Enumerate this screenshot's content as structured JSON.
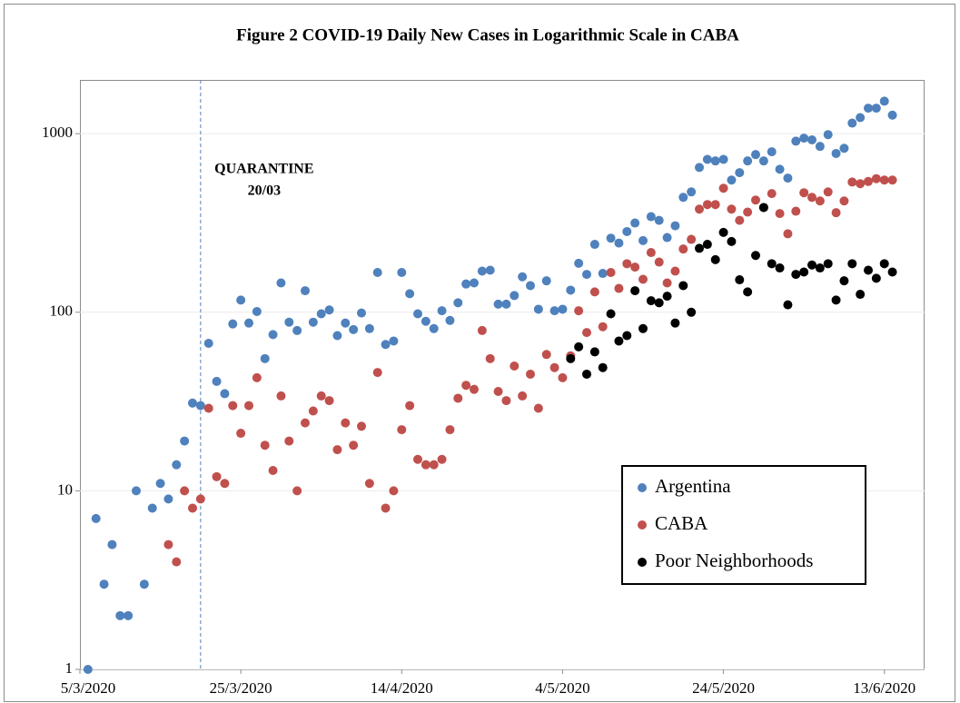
{
  "chart_data": {
    "type": "scatter",
    "title": "Figure 2 COVID-19 Daily New Cases in Logarithmic Scale in CABA",
    "log_scale": true,
    "grid": true,
    "legend": "lower right",
    "xlim": [
      "5/3/2020",
      "18/6/2020"
    ],
    "xticks": [
      "5/3/2020",
      "25/3/2020",
      "14/4/2020",
      "4/5/2020",
      "24/5/2020",
      "13/6/2020"
    ],
    "ylim": [
      1,
      2000
    ],
    "yticks": [
      1,
      10,
      100,
      1000
    ],
    "annotation": {
      "lines": [
        "QUARANTINE",
        "20/03"
      ],
      "x": "20/3/2020",
      "color": "#4f81bd"
    },
    "series": [
      {
        "name": "Argentina",
        "color": "#4f81bd",
        "x": [
          "6/3/2020",
          "7/3/2020",
          "8/3/2020",
          "9/3/2020",
          "10/3/2020",
          "11/3/2020",
          "12/3/2020",
          "13/3/2020",
          "14/3/2020",
          "15/3/2020",
          "16/3/2020",
          "17/3/2020",
          "18/3/2020",
          "19/3/2020",
          "20/3/2020",
          "21/3/2020",
          "22/3/2020",
          "23/3/2020",
          "24/3/2020",
          "25/3/2020",
          "26/3/2020",
          "27/3/2020",
          "28/3/2020",
          "29/3/2020",
          "30/3/2020",
          "31/3/2020",
          "1/4/2020",
          "2/4/2020",
          "3/4/2020",
          "4/4/2020",
          "5/4/2020",
          "6/4/2020",
          "7/4/2020",
          "8/4/2020",
          "9/4/2020",
          "10/4/2020",
          "11/4/2020",
          "12/4/2020",
          "13/4/2020",
          "14/4/2020",
          "15/4/2020",
          "16/4/2020",
          "17/4/2020",
          "18/4/2020",
          "19/4/2020",
          "20/4/2020",
          "21/4/2020",
          "22/4/2020",
          "23/4/2020",
          "24/4/2020",
          "25/4/2020",
          "26/4/2020",
          "27/4/2020",
          "28/4/2020",
          "29/4/2020",
          "30/4/2020",
          "1/5/2020",
          "2/5/2020",
          "3/5/2020",
          "4/5/2020",
          "5/5/2020",
          "6/5/2020",
          "7/5/2020",
          "8/5/2020",
          "9/5/2020",
          "10/5/2020",
          "11/5/2020",
          "12/5/2020",
          "13/5/2020",
          "14/5/2020",
          "15/5/2020",
          "16/5/2020",
          "17/5/2020",
          "18/5/2020",
          "19/5/2020",
          "20/5/2020",
          "21/5/2020",
          "22/5/2020",
          "23/5/2020",
          "24/5/2020",
          "25/5/2020",
          "26/5/2020",
          "27/5/2020",
          "28/5/2020",
          "29/5/2020",
          "30/5/2020",
          "31/5/2020",
          "1/6/2020",
          "2/6/2020",
          "3/6/2020",
          "4/6/2020",
          "5/6/2020",
          "6/6/2020",
          "7/6/2020",
          "8/6/2020",
          "9/6/2020",
          "10/6/2020",
          "11/6/2020",
          "12/6/2020",
          "13/6/2020",
          "14/6/2020"
        ],
        "values": [
          1,
          7,
          3,
          5,
          2,
          2,
          10,
          3,
          8,
          11,
          9,
          14,
          19,
          31,
          30,
          67,
          41,
          35,
          86,
          117,
          87,
          101,
          55,
          75,
          146,
          88,
          79,
          132,
          88,
          98,
          103,
          74,
          87,
          80,
          99,
          81,
          167,
          66,
          69,
          167,
          127,
          98,
          89,
          81,
          102,
          90,
          113,
          144,
          146,
          170,
          172,
          111,
          111,
          124,
          158,
          141,
          104,
          150,
          102,
          104,
          133,
          188,
          163,
          240,
          165,
          260,
          244,
          283,
          316,
          252,
          343,
          327,
          262,
          305,
          440,
          472,
          647,
          718,
          704,
          718,
          550,
          605,
          704,
          764,
          704,
          792,
          632,
          564,
          908,
          944,
          923,
          849,
          988,
          775,
          828,
          1146,
          1230,
          1390,
          1390,
          1520,
          1270
        ]
      },
      {
        "name": "CABA",
        "color": "#c0504d",
        "x": [
          "16/3/2020",
          "17/3/2020",
          "18/3/2020",
          "19/3/2020",
          "20/3/2020",
          "21/3/2020",
          "22/3/2020",
          "23/3/2020",
          "24/3/2020",
          "25/3/2020",
          "26/3/2020",
          "27/3/2020",
          "28/3/2020",
          "29/3/2020",
          "30/3/2020",
          "31/3/2020",
          "1/4/2020",
          "2/4/2020",
          "3/4/2020",
          "4/4/2020",
          "5/4/2020",
          "6/4/2020",
          "7/4/2020",
          "8/4/2020",
          "9/4/2020",
          "10/4/2020",
          "11/4/2020",
          "12/4/2020",
          "13/4/2020",
          "14/4/2020",
          "15/4/2020",
          "16/4/2020",
          "17/4/2020",
          "18/4/2020",
          "19/4/2020",
          "20/4/2020",
          "21/4/2020",
          "22/4/2020",
          "23/4/2020",
          "24/4/2020",
          "25/4/2020",
          "26/4/2020",
          "27/4/2020",
          "28/4/2020",
          "29/4/2020",
          "30/4/2020",
          "1/5/2020",
          "2/5/2020",
          "3/5/2020",
          "4/5/2020",
          "5/5/2020",
          "6/5/2020",
          "7/5/2020",
          "8/5/2020",
          "9/5/2020",
          "10/5/2020",
          "11/5/2020",
          "12/5/2020",
          "13/5/2020",
          "14/5/2020",
          "15/5/2020",
          "16/5/2020",
          "17/5/2020",
          "18/5/2020",
          "19/5/2020",
          "20/5/2020",
          "21/5/2020",
          "22/5/2020",
          "23/5/2020",
          "24/5/2020",
          "25/5/2020",
          "26/5/2020",
          "27/5/2020",
          "28/5/2020",
          "29/5/2020",
          "30/5/2020",
          "31/5/2020",
          "1/6/2020",
          "2/6/2020",
          "3/6/2020",
          "4/6/2020",
          "5/6/2020",
          "6/6/2020",
          "7/6/2020",
          "8/6/2020",
          "9/6/2020",
          "10/6/2020",
          "11/6/2020",
          "12/6/2020",
          "13/6/2020",
          "14/6/2020"
        ],
        "values": [
          5,
          4,
          10,
          8,
          9,
          29,
          12,
          11,
          30,
          21,
          30,
          43,
          18,
          13,
          34,
          19,
          10,
          24,
          28,
          34,
          32,
          17,
          24,
          18,
          23,
          11,
          46,
          8,
          10,
          22,
          30,
          15,
          14,
          14,
          15,
          22,
          33,
          39,
          37,
          79,
          55,
          36,
          32,
          50,
          34,
          45,
          29,
          58,
          49,
          43,
          57,
          102,
          77,
          130,
          83,
          167,
          136,
          187,
          179,
          153,
          216,
          191,
          146,
          170,
          226,
          256,
          378,
          401,
          401,
          495,
          378,
          327,
          364,
          425,
          386,
          462,
          357,
          275,
          368,
          467,
          440,
          420,
          472,
          361,
          420,
          536,
          525,
          540,
          560,
          550,
          550
        ]
      },
      {
        "name": "Poor Neighborhoods",
        "color": "#000000",
        "x": [
          "5/5/2020",
          "6/5/2020",
          "7/5/2020",
          "8/5/2020",
          "9/5/2020",
          "10/5/2020",
          "11/5/2020",
          "12/5/2020",
          "13/5/2020",
          "14/5/2020",
          "15/5/2020",
          "16/5/2020",
          "17/5/2020",
          "18/5/2020",
          "19/5/2020",
          "20/5/2020",
          "21/5/2020",
          "22/5/2020",
          "23/5/2020",
          "24/5/2020",
          "25/5/2020",
          "26/5/2020",
          "27/5/2020",
          "28/5/2020",
          "29/5/2020",
          "30/5/2020",
          "31/5/2020",
          "1/6/2020",
          "2/6/2020",
          "3/6/2020",
          "4/6/2020",
          "5/6/2020",
          "6/6/2020",
          "7/6/2020",
          "8/6/2020",
          "9/6/2020",
          "10/6/2020",
          "11/6/2020",
          "12/6/2020",
          "13/6/2020",
          "14/6/2020"
        ],
        "values": [
          55,
          64,
          45,
          60,
          49,
          98,
          69,
          74,
          132,
          81,
          116,
          113,
          123,
          87,
          141,
          100,
          228,
          240,
          197,
          280,
          249,
          152,
          130,
          208,
          386,
          187,
          177,
          110,
          163,
          168,
          184,
          177,
          187,
          117,
          150,
          187,
          126,
          172,
          155,
          187,
          168
        ]
      }
    ]
  }
}
